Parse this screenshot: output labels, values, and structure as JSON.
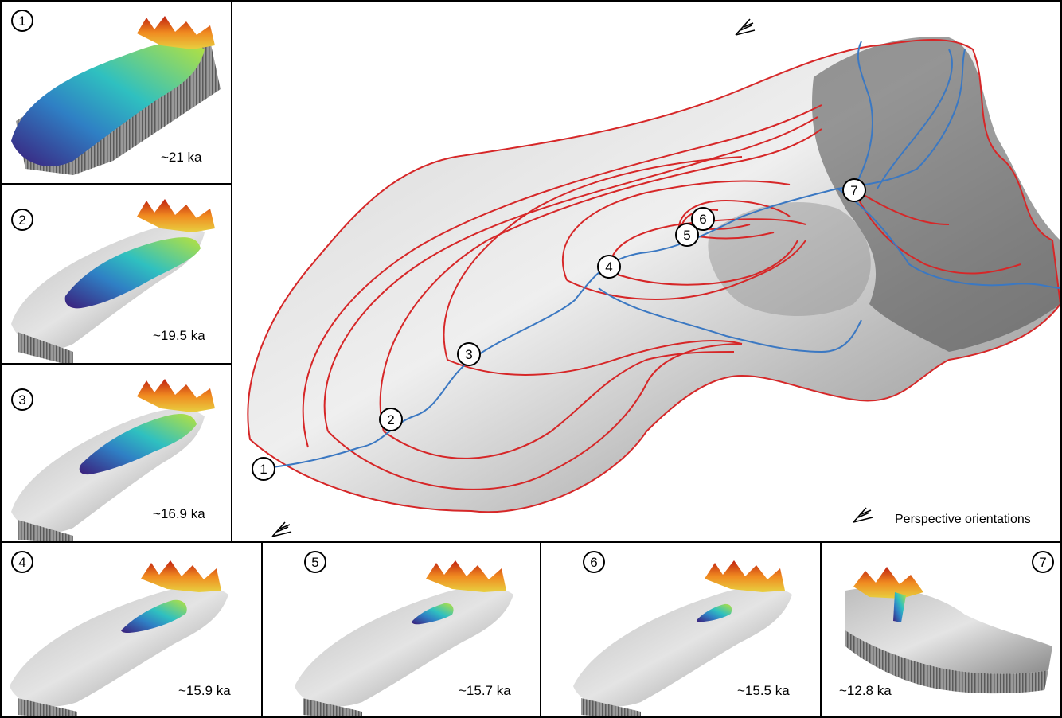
{
  "main_map": {
    "legend_label": "Perspective orientations",
    "markers": [
      "1",
      "2",
      "3",
      "4",
      "5",
      "6",
      "7"
    ]
  },
  "panels": [
    {
      "num": "1",
      "age": "~21 ka"
    },
    {
      "num": "2",
      "age": "~19.5 ka"
    },
    {
      "num": "3",
      "age": "~16.9 ka"
    },
    {
      "num": "4",
      "age": "~15.9 ka"
    },
    {
      "num": "5",
      "age": "~15.7 ka"
    },
    {
      "num": "6",
      "age": "~15.5 ka"
    },
    {
      "num": "7",
      "age": "~12.8 ka"
    }
  ],
  "colors": {
    "outline": "#d62728",
    "river": "#3b78c2",
    "ice_low": "#3b1d7a",
    "ice_mid": "#2fb5c9",
    "ice_high": "#b4e34a",
    "peaks": "#f0a020"
  }
}
